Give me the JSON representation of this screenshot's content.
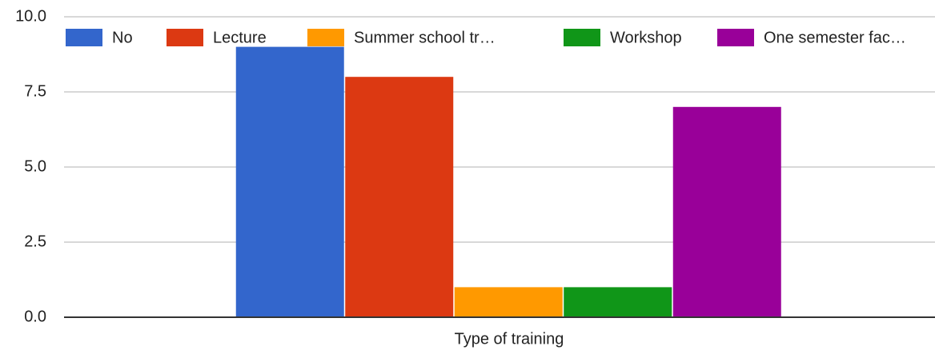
{
  "chart_data": {
    "type": "bar",
    "categories": [
      "Type of training"
    ],
    "series": [
      {
        "name": "No",
        "color": "#3366cc",
        "values": [
          9
        ]
      },
      {
        "name": "Lecture",
        "color": "#dc3912",
        "values": [
          8
        ]
      },
      {
        "name": "Summer school tr…",
        "color": "#ff9900",
        "values": [
          1
        ]
      },
      {
        "name": "Workshop",
        "color": "#109618",
        "values": [
          1
        ]
      },
      {
        "name": "One semester fac…",
        "color": "#990099",
        "values": [
          7
        ]
      }
    ],
    "ylim": [
      0,
      10
    ],
    "yticks": [
      {
        "value": 0,
        "label": "0.0"
      },
      {
        "value": 2.5,
        "label": "2.5"
      },
      {
        "value": 5,
        "label": "5.0"
      },
      {
        "value": 7.5,
        "label": "7.5"
      },
      {
        "value": 10,
        "label": "10.0"
      }
    ],
    "grid": true,
    "legend": "top"
  }
}
